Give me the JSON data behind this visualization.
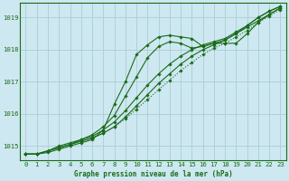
{
  "title": "Graphe pression niveau de la mer (hPa)",
  "background_color": "#cde8f0",
  "grid_color": "#b0d0d8",
  "line_color": "#1a6b1a",
  "marker_color": "#1a6b1a",
  "xlim": [
    -0.5,
    23.5
  ],
  "ylim": [
    1014.55,
    1019.45
  ],
  "yticks": [
    1015,
    1016,
    1017,
    1018,
    1019
  ],
  "xticks": [
    0,
    1,
    2,
    3,
    4,
    5,
    6,
    7,
    8,
    9,
    10,
    11,
    12,
    13,
    14,
    15,
    16,
    17,
    18,
    19,
    20,
    21,
    22,
    23
  ],
  "series1_x": [
    0,
    1,
    2,
    3,
    4,
    5,
    6,
    7,
    8,
    9,
    10,
    11,
    12,
    13,
    14,
    15,
    16,
    17,
    18,
    19,
    20,
    21,
    22,
    23
  ],
  "series1_y": [
    1014.75,
    1014.75,
    1014.85,
    1014.95,
    1015.05,
    1015.15,
    1015.25,
    1015.4,
    1015.6,
    1015.85,
    1016.15,
    1016.45,
    1016.75,
    1017.05,
    1017.35,
    1017.6,
    1017.85,
    1018.05,
    1018.2,
    1018.4,
    1018.6,
    1018.85,
    1019.05,
    1019.25
  ],
  "series2_x": [
    0,
    1,
    2,
    3,
    4,
    5,
    6,
    7,
    8,
    9,
    10,
    11,
    12,
    13,
    14,
    15,
    16,
    17,
    18,
    19,
    20,
    21,
    22,
    23
  ],
  "series2_y": [
    1014.75,
    1014.75,
    1014.85,
    1014.95,
    1015.05,
    1015.15,
    1015.25,
    1015.4,
    1015.6,
    1015.9,
    1016.25,
    1016.6,
    1016.95,
    1017.25,
    1017.55,
    1017.8,
    1018.0,
    1018.15,
    1018.3,
    1018.5,
    1018.7,
    1018.9,
    1019.1,
    1019.3
  ],
  "series3_x": [
    0,
    1,
    2,
    3,
    4,
    5,
    6,
    7,
    8,
    9,
    10,
    11,
    12,
    13,
    14,
    15,
    16,
    17,
    18,
    19,
    20,
    21,
    22,
    23
  ],
  "series3_y": [
    1014.75,
    1014.75,
    1014.85,
    1014.95,
    1015.05,
    1015.2,
    1015.3,
    1015.5,
    1015.75,
    1016.1,
    1016.5,
    1016.9,
    1017.25,
    1017.55,
    1017.8,
    1018.0,
    1018.15,
    1018.25,
    1018.35,
    1018.55,
    1018.75,
    1019.0,
    1019.2,
    1019.35
  ],
  "series4_x": [
    0,
    1,
    2,
    3,
    4,
    5,
    6,
    7,
    8,
    9,
    10,
    11,
    12,
    13,
    14,
    15,
    16,
    17,
    18,
    19,
    20,
    21,
    22,
    23
  ],
  "series4_y": [
    1014.75,
    1014.75,
    1014.85,
    1015.0,
    1015.1,
    1015.2,
    1015.35,
    1015.6,
    1015.95,
    1016.55,
    1017.15,
    1017.75,
    1018.1,
    1018.25,
    1018.2,
    1018.05,
    1018.1,
    1018.2,
    1018.3,
    1018.5,
    1018.75,
    1019.0,
    1019.2,
    1019.35
  ],
  "series5_x": [
    0,
    1,
    2,
    3,
    4,
    5,
    6,
    7,
    8,
    9,
    10,
    11,
    12,
    13,
    14,
    15,
    16,
    17,
    18,
    19,
    20,
    21,
    22,
    23
  ],
  "series5_y": [
    1014.75,
    1014.75,
    1014.8,
    1014.9,
    1015.0,
    1015.1,
    1015.2,
    1015.5,
    1016.3,
    1017.0,
    1017.85,
    1018.15,
    1018.4,
    1018.45,
    1018.4,
    1018.35,
    1018.1,
    1018.2,
    1018.2,
    1018.2,
    1018.5,
    1018.85,
    1019.1,
    1019.3
  ]
}
